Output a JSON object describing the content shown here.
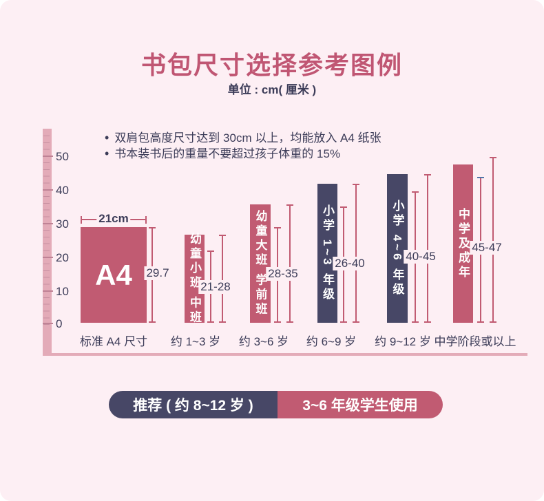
{
  "title": "书包尺寸选择参考图例",
  "subtitle": "单位 : cm( 厘米 )",
  "notes": [
    "双肩包高度尺寸达到 30cm 以上，均能放入 A4 纸张",
    "书本装书后的重量不要超过孩子体重的 15%"
  ],
  "chart_data": {
    "type": "bar",
    "title": "书包尺寸选择参考图例",
    "unit": "cm",
    "ylim": [
      0,
      50
    ],
    "y_ticks": [
      0,
      10,
      20,
      30,
      40,
      50
    ],
    "ruler_tick_labels": [
      "50",
      "40",
      "30",
      "20",
      "10",
      "0"
    ],
    "categories": [
      "标准 A4 尺寸",
      "约 1~3 岁",
      "约 3~6 岁",
      "约 6~9 岁",
      "约 9~12 岁",
      "中学阶段或以上"
    ],
    "bars": [
      {
        "bar_text": "A4",
        "color": "rose",
        "width_cm": 21,
        "height_cm": 29.7,
        "width_label": "21cm",
        "height_label": "29.7"
      },
      {
        "bar_text": "幼童小班 中班",
        "color": "rose",
        "min_cm": 21,
        "max_cm": 28,
        "range_label": "21-28"
      },
      {
        "bar_text": "幼童大班 学前班",
        "color": "rose",
        "min_cm": 28,
        "max_cm": 35,
        "range_label": "28-35"
      },
      {
        "bar_text": "小学 1~3 年级",
        "color": "navy",
        "min_cm": 26,
        "max_cm": 40,
        "range_label": "26-40"
      },
      {
        "bar_text": "小学 4~6 年级",
        "color": "navy",
        "min_cm": 40,
        "max_cm": 45,
        "range_label": "40-45"
      },
      {
        "bar_text": "中学及成年",
        "color": "rose",
        "min_cm": 45,
        "max_cm": 47,
        "range_label": "45-47"
      }
    ],
    "legend": false,
    "grid": false
  },
  "banner": {
    "left": "推荐 ( 约 8~12 岁 )",
    "right": "3~6 年级学生使用"
  },
  "colors": {
    "rose": "#c15b72",
    "navy": "#474766",
    "background": "#fdeff4",
    "ruler": "#e3abb8",
    "title": "#c05673",
    "text": "#3c3c58",
    "blue_cap": "#4f74a8"
  }
}
